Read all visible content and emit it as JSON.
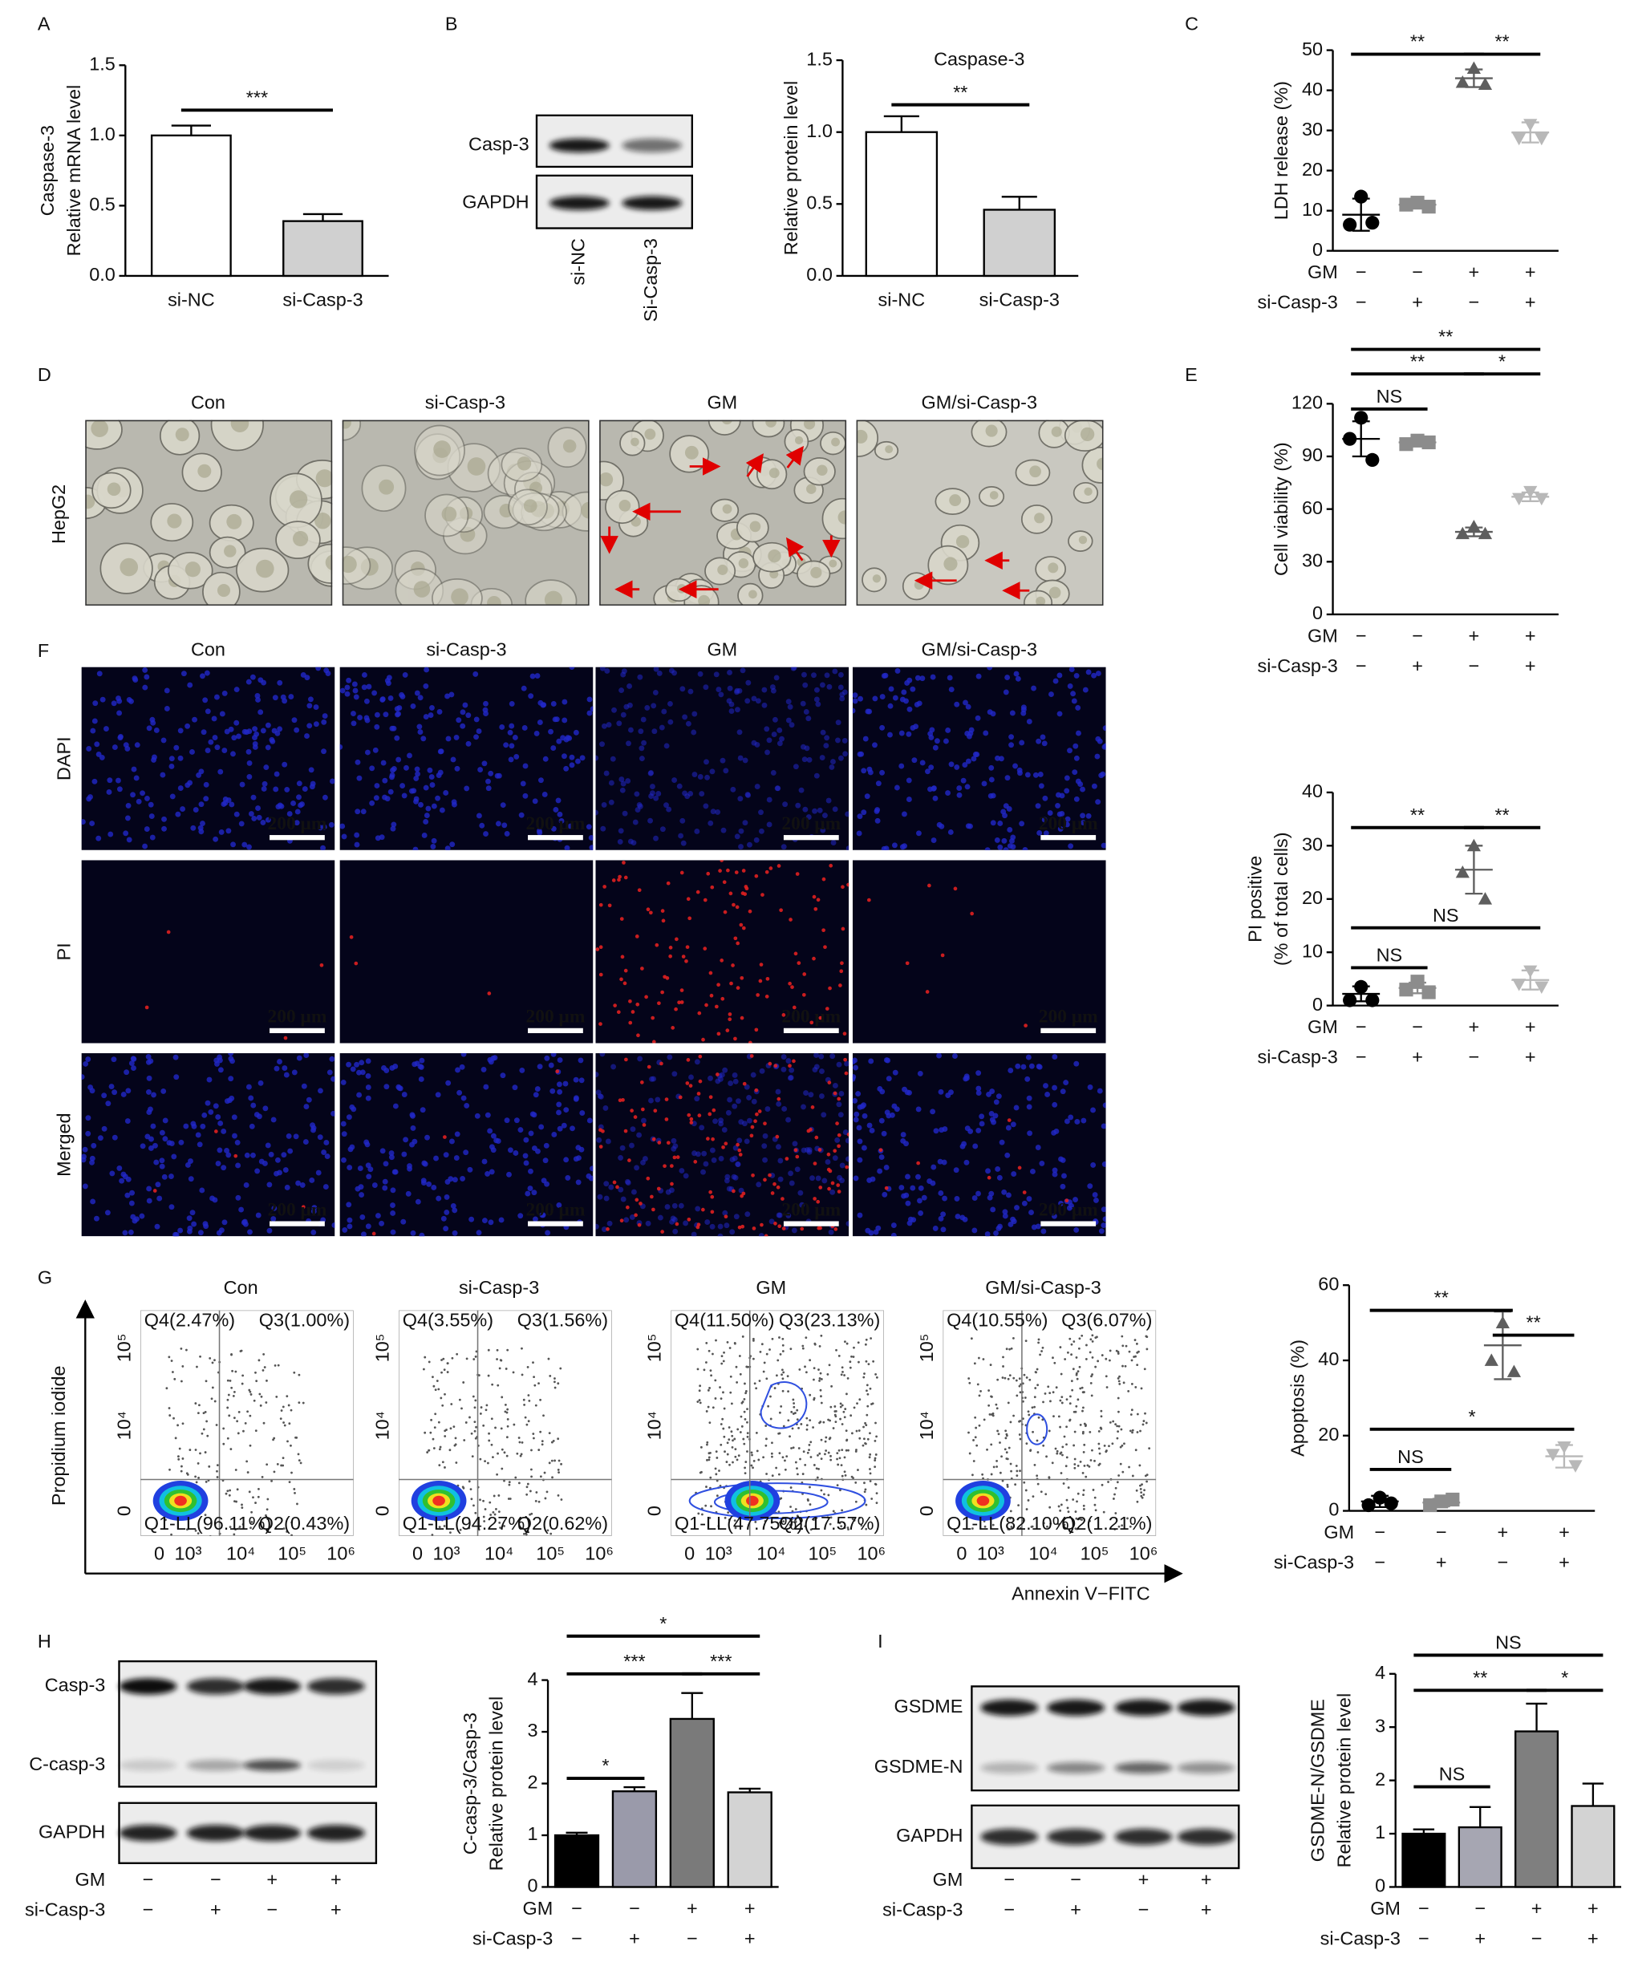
{
  "panel_labels": [
    "A",
    "B",
    "C",
    "D",
    "E",
    "F",
    "G",
    "H",
    "I"
  ],
  "chart_data": [
    {
      "type": "bar",
      "ylabel": [
        "Caspase-3",
        "Relative mRNA level"
      ],
      "categories": [
        "si-NC",
        "si-Casp-3"
      ],
      "values": [
        1.0,
        0.39
      ],
      "errors": [
        0.07,
        0.05
      ],
      "colors": [
        "#ffffff",
        "#d0d0d0"
      ],
      "ylim": [
        0,
        1.5
      ],
      "yticks": [
        {
          "value": 0,
          "label": "0.0"
        },
        0.5,
        {
          "value": 1,
          "label": "1.0"
        },
        1.5
      ],
      "significance": [
        {
          "groups": [
            0,
            1
          ],
          "y": 1.18,
          "label": "***"
        }
      ]
    },
    {
      "type": "bar",
      "title": "Caspase-3",
      "ylabel": [
        "Relative protein level"
      ],
      "categories": [
        "si-NC",
        "si-Casp-3"
      ],
      "values": [
        1.0,
        0.46
      ],
      "errors": [
        0.11,
        0.09
      ],
      "colors": [
        "#ffffff",
        "#d0d0d0"
      ],
      "ylim": [
        0,
        1.5
      ],
      "yticks": [
        {
          "value": 0,
          "label": "0.0"
        },
        0.5,
        {
          "value": 1,
          "label": "1.0"
        },
        1.5
      ],
      "significance": [
        {
          "groups": [
            0,
            1
          ],
          "y": 1.19,
          "label": "**"
        }
      ]
    },
    {
      "type": "dotplot",
      "ylabel": [
        "LDH release (%)"
      ],
      "ylim": [
        0,
        50
      ],
      "yticks": [
        0,
        10,
        20,
        30,
        40,
        50
      ],
      "factors": [
        {
          "name": "GM",
          "signs": [
            "−",
            "−",
            "+",
            "+"
          ]
        },
        {
          "name": "si-Casp-3",
          "signs": [
            "−",
            "+",
            "−",
            "+"
          ]
        }
      ],
      "series": [
        {
          "color": "#000000",
          "marker": "circle",
          "values": [
            13.5,
            6.5,
            7
          ],
          "mean": 9,
          "error": 4
        },
        {
          "color": "#8c8c8c",
          "marker": "square",
          "values": [
            12,
            11.5,
            11
          ],
          "mean": 11.5,
          "error": 0.5
        },
        {
          "color": "#5e5e5e",
          "marker": "triangle",
          "values": [
            45.5,
            42,
            41.5
          ],
          "mean": 43,
          "error": 2.2
        },
        {
          "color": "#b8b8b8",
          "marker": "triangle-down",
          "values": [
            31.5,
            28,
            28
          ],
          "mean": 29.5,
          "error": 2.5
        }
      ],
      "significance": [
        {
          "groups": [
            0,
            2
          ],
          "y": 49,
          "label": "**"
        },
        {
          "groups": [
            2,
            3
          ],
          "y": 49,
          "label": "**"
        }
      ]
    },
    {
      "type": "dotplot",
      "ylabel": [
        "Cell viability (%)"
      ],
      "ylim": [
        0,
        120
      ],
      "yticks": [
        0,
        30,
        60,
        90,
        120
      ],
      "factors": [
        {
          "name": "GM",
          "signs": [
            "−",
            "−",
            "+",
            "+"
          ]
        },
        {
          "name": "si-Casp-3",
          "signs": [
            "−",
            "+",
            "−",
            "+"
          ]
        }
      ],
      "series": [
        {
          "color": "#000000",
          "marker": "circle",
          "values": [
            112,
            100,
            88
          ],
          "mean": 100,
          "error": 10
        },
        {
          "color": "#8c8c8c",
          "marker": "square",
          "values": [
            99,
            97,
            98
          ],
          "mean": 98,
          "error": 1
        },
        {
          "color": "#5e5e5e",
          "marker": "triangle",
          "values": [
            50,
            46,
            46
          ],
          "mean": 47,
          "error": 2.5
        },
        {
          "color": "#b8b8b8",
          "marker": "triangle-down",
          "values": [
            70,
            66,
            66
          ],
          "mean": 67,
          "error": 2.5
        }
      ],
      "significance": [
        {
          "groups": [
            0,
            1
          ],
          "y": 117,
          "label": "NS"
        },
        {
          "groups": [
            0,
            2
          ],
          "y": 137,
          "label": "**"
        },
        {
          "groups": [
            2,
            3
          ],
          "y": 137,
          "label": "*"
        },
        {
          "groups": [
            0,
            3
          ],
          "y": 151,
          "label": "**"
        }
      ]
    },
    {
      "type": "dotplot",
      "ylabel": [
        "PI positive",
        "(% of total cells)"
      ],
      "ylim": [
        0,
        40
      ],
      "yticks": [
        0,
        10,
        20,
        30,
        40
      ],
      "factors": [
        {
          "name": "GM",
          "signs": [
            "−",
            "−",
            "+",
            "+"
          ]
        },
        {
          "name": "si-Casp-3",
          "signs": [
            "−",
            "+",
            "−",
            "+"
          ]
        }
      ],
      "series": [
        {
          "color": "#000000",
          "marker": "circle",
          "values": [
            3.5,
            1,
            1
          ],
          "mean": 2.2,
          "error": 1.4
        },
        {
          "color": "#8c8c8c",
          "marker": "square",
          "values": [
            4.5,
            3,
            2.5
          ],
          "mean": 3.3,
          "error": 1
        },
        {
          "color": "#5e5e5e",
          "marker": "triangle",
          "values": [
            30,
            25,
            20
          ],
          "mean": 25.5,
          "error": 4.5
        },
        {
          "color": "#b8b8b8",
          "marker": "triangle-down",
          "values": [
            6.5,
            4,
            3.5
          ],
          "mean": 4.8,
          "error": 1.8
        }
      ],
      "significance": [
        {
          "groups": [
            0,
            2
          ],
          "y": 33.4,
          "label": "**"
        },
        {
          "groups": [
            2,
            3
          ],
          "y": 33.4,
          "label": "**"
        },
        {
          "groups": [
            0,
            3
          ],
          "y": 14.6,
          "label": "NS"
        },
        {
          "groups": [
            0,
            1
          ],
          "y": 7.1,
          "label": "NS"
        }
      ]
    },
    {
      "type": "dotplot",
      "ylabel": [
        "Apoptosis (%)"
      ],
      "ylim": [
        0,
        60
      ],
      "yticks": [
        0,
        20,
        40,
        60
      ],
      "factors": [
        {
          "name": "GM",
          "signs": [
            "−",
            "−",
            "+",
            "+"
          ]
        },
        {
          "name": "si-Casp-3",
          "signs": [
            "−",
            "+",
            "−",
            "+"
          ]
        }
      ],
      "series": [
        {
          "color": "#000000",
          "marker": "circle",
          "values": [
            3.5,
            1.5,
            2
          ],
          "mean": 2.5,
          "error": 1.5
        },
        {
          "color": "#8c8c8c",
          "marker": "square",
          "values": [
            2.5,
            1.5,
            3
          ],
          "mean": 2.2,
          "error": 1
        },
        {
          "color": "#5e5e5e",
          "marker": "triangle",
          "values": [
            50,
            40,
            37
          ],
          "mean": 44,
          "error": 9
        },
        {
          "color": "#b8b8b8",
          "marker": "triangle-down",
          "values": [
            17,
            15,
            12
          ],
          "mean": 14.5,
          "error": 3
        }
      ],
      "significance": [
        {
          "groups": [
            0,
            2
          ],
          "y": 53.3,
          "label": "**"
        },
        {
          "groups": [
            2,
            3
          ],
          "y": 46.7,
          "label": "**"
        },
        {
          "groups": [
            0,
            3
          ],
          "y": 21.7,
          "label": "*"
        },
        {
          "groups": [
            0,
            1
          ],
          "y": 11,
          "label": "NS"
        }
      ]
    },
    {
      "type": "bar",
      "ylabel": [
        "C-casp-3/Casp-3",
        "Relative protein level"
      ],
      "values": [
        1.0,
        1.85,
        3.25,
        1.83
      ],
      "errors": [
        0.05,
        0.08,
        0.5,
        0.07
      ],
      "colors": [
        "#000000",
        "#9a9aaa",
        "#7a7a7a",
        "#d3d3d3"
      ],
      "ylim": [
        0,
        4
      ],
      "yticks": [
        0,
        1,
        2,
        3,
        4
      ],
      "factors": [
        {
          "name": "GM",
          "signs": [
            "−",
            "−",
            "+",
            "+"
          ]
        },
        {
          "name": "si-Casp-3",
          "signs": [
            "−",
            "+",
            "−",
            "+"
          ]
        }
      ],
      "significance": [
        {
          "groups": [
            0,
            1
          ],
          "y": 2.1,
          "label": "*"
        },
        {
          "groups": [
            0,
            2
          ],
          "y": 4.12,
          "label": "***"
        },
        {
          "groups": [
            2,
            3
          ],
          "y": 4.12,
          "label": "***"
        },
        {
          "groups": [
            0,
            3
          ],
          "y": 4.85,
          "label": "*"
        }
      ]
    },
    {
      "type": "bar",
      "ylabel": [
        "GSDME-N/GSDME",
        "Relative protein level"
      ],
      "values": [
        1.0,
        1.12,
        2.92,
        1.52
      ],
      "errors": [
        0.08,
        0.38,
        0.52,
        0.42
      ],
      "colors": [
        "#000000",
        "#a6a6b2",
        "#7f7f7f",
        "#d3d3d3"
      ],
      "ylim": [
        0,
        4
      ],
      "yticks": [
        0,
        1,
        2,
        3,
        4
      ],
      "factors": [
        {
          "name": "GM",
          "signs": [
            "−",
            "−",
            "+",
            "+"
          ]
        },
        {
          "name": "si-Casp-3",
          "signs": [
            "−",
            "+",
            "−",
            "+"
          ]
        }
      ],
      "significance": [
        {
          "groups": [
            0,
            1
          ],
          "y": 1.88,
          "label": "NS"
        },
        {
          "groups": [
            0,
            2
          ],
          "y": 3.69,
          "label": "**"
        },
        {
          "groups": [
            2,
            3
          ],
          "y": 3.69,
          "label": "*"
        },
        {
          "groups": [
            0,
            3
          ],
          "y": 4.35,
          "label": "NS"
        }
      ]
    }
  ],
  "blot_B": {
    "bands": [
      "Casp-3",
      "GAPDH"
    ],
    "lanes": [
      "si-NC",
      "Si-Casp-3"
    ]
  },
  "micrographs_D": {
    "columns": [
      "Con",
      "si-Casp-3",
      "GM",
      "GM/si-Casp-3"
    ],
    "row": "HepG2"
  },
  "fluorescence_F": {
    "columns": [
      "Con",
      "si-Casp-3",
      "GM",
      "GM/si-Casp-3"
    ],
    "rows": [
      "DAPI",
      "PI",
      "Merged"
    ],
    "scale_bar": "200 μm"
  },
  "flow_G": {
    "columns": [
      "Con",
      "si-Casp-3",
      "GM",
      "GM/si-Casp-3"
    ],
    "y_axis": "Propidium iodide",
    "x_axis": "Annexin V−FITC",
    "x_ticks": [
      "0",
      "10³",
      "10⁴",
      "10⁵",
      "10⁶"
    ],
    "y_ticks": [
      "10⁵",
      "10⁴",
      "0"
    ],
    "quadrants": [
      [
        "Q4(2.47%)",
        "Q3(1.00%)",
        "Q1-LL(96.11%)",
        "Q2(0.43%)"
      ],
      [
        "Q4(3.55%)",
        "Q3(1.56%)",
        "Q1-LL(94.27%)",
        "Q2(0.62%)"
      ],
      [
        "Q4(11.50%)",
        "Q3(23.13%)",
        "Q1-LL(47.75%)",
        "Q2(17.57%)"
      ],
      [
        "Q4(10.55%)",
        "Q3(6.07%)",
        "Q1-LL(82.10%)",
        "Q2(1.21%)"
      ]
    ]
  },
  "blot_H": {
    "bands": [
      "Casp-3",
      "C-casp-3",
      "GAPDH"
    ],
    "factors": [
      {
        "name": "GM",
        "signs": [
          "−",
          "−",
          "+",
          "+"
        ]
      },
      {
        "name": "si-Casp-3",
        "signs": [
          "−",
          "+",
          "−",
          "+"
        ]
      }
    ]
  },
  "blot_I": {
    "bands": [
      "GSDME",
      "GSDME-N",
      "GAPDH"
    ],
    "factors": [
      {
        "name": "GM",
        "signs": [
          "−",
          "−",
          "+",
          "+"
        ]
      },
      {
        "name": "si-Casp-3",
        "signs": [
          "−",
          "+",
          "−",
          "+"
        ]
      }
    ]
  }
}
